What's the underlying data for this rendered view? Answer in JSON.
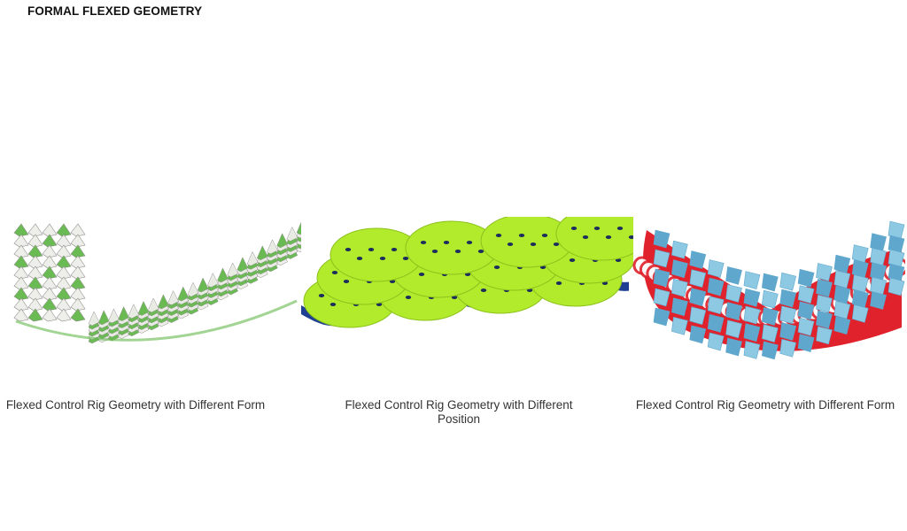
{
  "page": {
    "title": "FORMAL FLEXED GEOMETRY"
  },
  "panels": [
    {
      "caption": "Flexed Control Rig Geometry with Different Form",
      "colors": {
        "tile": "#eeeeea",
        "edge": "#8a8a84",
        "accent": "#64b84c"
      }
    },
    {
      "caption": "Flexed Control Rig Geometry with Different Position",
      "colors": {
        "tile": "#b2ea2c",
        "hole": "#1c2f5c",
        "base": "#1e3f92"
      }
    },
    {
      "caption": "Flexed Control Rig Geometry with Different Form",
      "colors": {
        "frame": "#e0222c",
        "tile": "#8ec9e3",
        "tileDark": "#5fa7cc"
      }
    }
  ]
}
